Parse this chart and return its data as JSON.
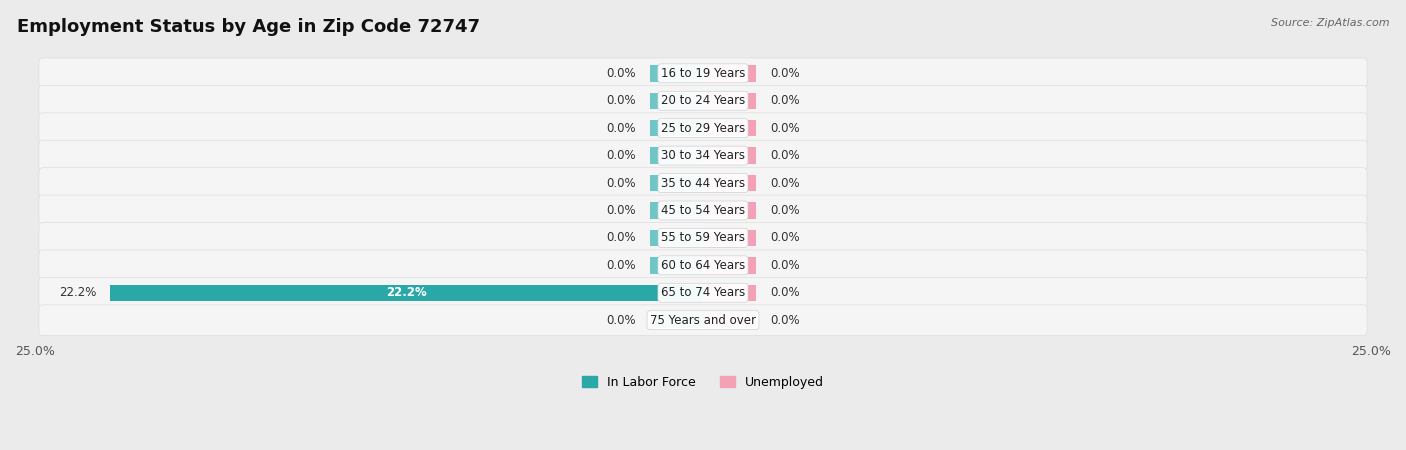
{
  "title": "Employment Status by Age in Zip Code 72747",
  "source": "Source: ZipAtlas.com",
  "categories": [
    "16 to 19 Years",
    "20 to 24 Years",
    "25 to 29 Years",
    "30 to 34 Years",
    "35 to 44 Years",
    "45 to 54 Years",
    "55 to 59 Years",
    "60 to 64 Years",
    "65 to 74 Years",
    "75 Years and over"
  ],
  "labor_force": [
    0.0,
    0.0,
    0.0,
    0.0,
    0.0,
    0.0,
    0.0,
    0.0,
    22.2,
    0.0
  ],
  "unemployed": [
    0.0,
    0.0,
    0.0,
    0.0,
    0.0,
    0.0,
    0.0,
    0.0,
    0.0,
    0.0
  ],
  "labor_force_color": "#6ec6c6",
  "labor_force_color_dark": "#2aa8a8",
  "unemployed_color": "#f4a0b5",
  "xlim": 25.0,
  "stub_val": 2.0,
  "background_color": "#ebebeb",
  "row_bg": "#f5f5f5",
  "row_border": "#dddddd",
  "bar_height": 0.6,
  "title_fontsize": 13,
  "label_fontsize": 8.5,
  "tick_fontsize": 9,
  "legend_fontsize": 9
}
